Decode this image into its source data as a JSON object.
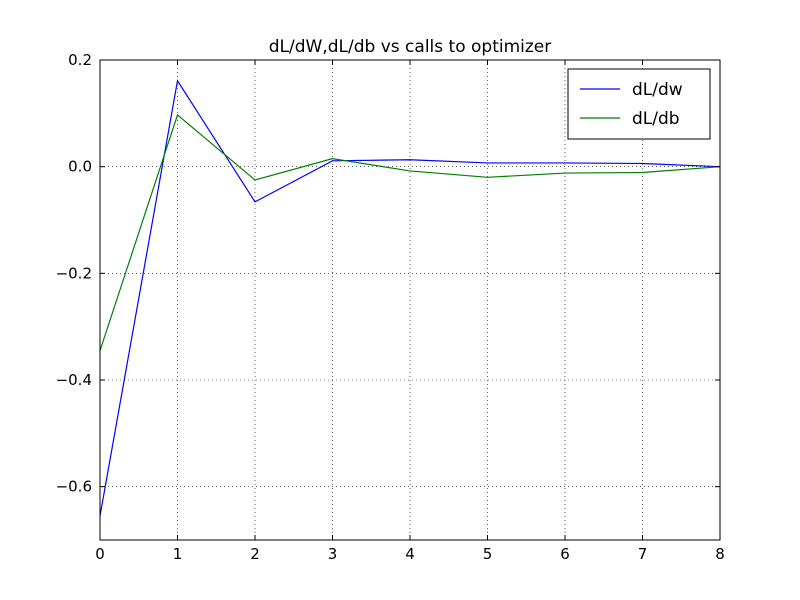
{
  "chart_data": {
    "type": "line",
    "title": "dL/dW,dL/db vs calls to optimizer",
    "xlabel": "",
    "ylabel": "",
    "xlim": [
      0,
      8
    ],
    "ylim": [
      -0.7,
      0.2
    ],
    "xticks": [
      0,
      1,
      2,
      3,
      4,
      5,
      6,
      7,
      8
    ],
    "yticks": [
      0.2,
      0.0,
      -0.2,
      -0.4,
      -0.6
    ],
    "ytick_labels": [
      "0.2",
      "0.0",
      "−0.2",
      "−0.4",
      "−0.6"
    ],
    "grid": true,
    "legend_position": "top-right",
    "x": [
      0,
      1,
      2,
      3,
      4,
      5,
      6,
      7,
      8
    ],
    "series": [
      {
        "name": "dL/dw",
        "color": "#0000ff",
        "values": [
          -0.655,
          0.161,
          -0.066,
          0.011,
          0.013,
          0.007,
          0.007,
          0.006,
          0.0
        ]
      },
      {
        "name": "dL/db",
        "color": "#008000",
        "values": [
          -0.345,
          0.097,
          -0.025,
          0.015,
          -0.008,
          -0.02,
          -0.012,
          -0.011,
          0.0
        ]
      }
    ]
  }
}
